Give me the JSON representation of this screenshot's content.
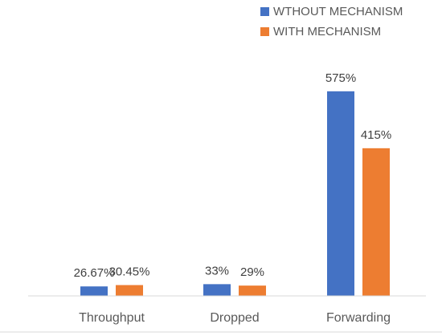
{
  "chart_data": {
    "type": "bar",
    "title": "",
    "xlabel": "",
    "ylabel": "",
    "categories": [
      "Throughput",
      "Dropped",
      "Forwarding"
    ],
    "series": [
      {
        "name": "WTHOUT MECHANISM",
        "color": "#4472C4",
        "values": [
          26.67,
          33,
          575
        ],
        "labels": [
          "26.67%",
          "33%",
          "575%"
        ]
      },
      {
        "name": "WITH MECHANISM",
        "color": "#ED7D31",
        "values": [
          30.45,
          29,
          415
        ],
        "labels": [
          "30.45%",
          "29%",
          "415%"
        ]
      }
    ],
    "ylim": [
      0,
      640
    ],
    "unit": "%",
    "grid": false,
    "legend": "top-right"
  }
}
